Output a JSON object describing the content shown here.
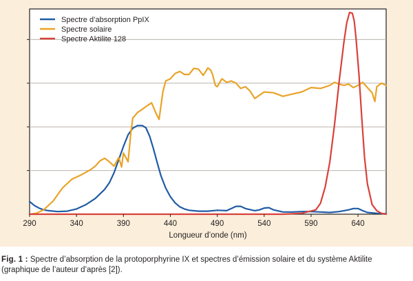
{
  "chart_data": {
    "type": "line",
    "xlabel": "Longueur d’onde (nm)",
    "ylabel": "",
    "xlim": [
      290,
      670
    ],
    "ylim": [
      0,
      4.7
    ],
    "x_ticks": [
      290,
      340,
      390,
      440,
      490,
      540,
      590,
      640
    ],
    "y_gridlines": [
      1,
      2,
      3,
      4
    ],
    "grid": true,
    "legend_position": "top-left",
    "colors": {
      "background": "#fbeedb",
      "grid": "#b9b3ad"
    },
    "series": [
      {
        "name": "Spectre d’absorption PpIX",
        "color": "#1f5ba3",
        "x": [
          290,
          295,
          300,
          305,
          310,
          320,
          330,
          340,
          350,
          360,
          370,
          375,
          380,
          385,
          390,
          395,
          400,
          405,
          410,
          414,
          418,
          422,
          426,
          430,
          435,
          440,
          445,
          450,
          455,
          460,
          470,
          480,
          490,
          500,
          505,
          510,
          515,
          520,
          530,
          535,
          540,
          545,
          550,
          560,
          570,
          580,
          590,
          600,
          610,
          620,
          630,
          635,
          640,
          645,
          650,
          660,
          670
        ],
        "values": [
          0.29,
          0.2,
          0.14,
          0.1,
          0.08,
          0.06,
          0.07,
          0.12,
          0.22,
          0.36,
          0.57,
          0.72,
          0.95,
          1.25,
          1.55,
          1.82,
          1.97,
          2.03,
          2.03,
          1.98,
          1.78,
          1.5,
          1.18,
          0.88,
          0.6,
          0.4,
          0.26,
          0.17,
          0.12,
          0.09,
          0.07,
          0.07,
          0.09,
          0.08,
          0.13,
          0.18,
          0.18,
          0.13,
          0.08,
          0.1,
          0.14,
          0.15,
          0.1,
          0.05,
          0.05,
          0.06,
          0.06,
          0.05,
          0.04,
          0.06,
          0.1,
          0.13,
          0.13,
          0.08,
          0.04,
          0.02,
          0.01
        ]
      },
      {
        "name": "Spectre solaire",
        "color": "#e8a327",
        "x": [
          290,
          297,
          305,
          315,
          325,
          335,
          345,
          355,
          360,
          365,
          370,
          375,
          380,
          382,
          385,
          388,
          390,
          395,
          398,
          400,
          405,
          410,
          415,
          420,
          425,
          428,
          432,
          435,
          440,
          445,
          450,
          455,
          460,
          465,
          470,
          475,
          478,
          480,
          483,
          485,
          488,
          490,
          495,
          500,
          505,
          510,
          515,
          520,
          525,
          530,
          540,
          550,
          560,
          570,
          580,
          590,
          600,
          610,
          615,
          620,
          625,
          630,
          635,
          640,
          645,
          650,
          655,
          658,
          660,
          665,
          670
        ],
        "values": [
          0,
          0.02,
          0.1,
          0.3,
          0.6,
          0.8,
          0.9,
          1.02,
          1.1,
          1.22,
          1.28,
          1.2,
          1.1,
          1.18,
          1.3,
          1.08,
          1.4,
          1.2,
          1.88,
          2.2,
          2.33,
          2.4,
          2.48,
          2.55,
          2.3,
          2.17,
          2.8,
          3.05,
          3.1,
          3.22,
          3.27,
          3.2,
          3.2,
          3.34,
          3.32,
          3.18,
          3.28,
          3.35,
          3.3,
          3.2,
          2.95,
          2.92,
          3.1,
          3.02,
          3.05,
          3.0,
          2.88,
          2.92,
          2.82,
          2.65,
          2.8,
          2.78,
          2.7,
          2.75,
          2.8,
          2.9,
          2.88,
          2.95,
          3.02,
          2.98,
          2.95,
          2.98,
          2.9,
          2.95,
          3.02,
          2.9,
          2.78,
          2.58,
          2.92,
          3.0,
          2.95
        ]
      },
      {
        "name": "Spectre Aktilite 128",
        "color": "#d9403a",
        "x": [
          290,
          560,
          580,
          595,
          600,
          605,
          610,
          615,
          620,
          625,
          628,
          631,
          634,
          636,
          638,
          641,
          644,
          647,
          650,
          655,
          660,
          665,
          670
        ],
        "values": [
          0,
          0,
          0.02,
          0.1,
          0.25,
          0.62,
          1.2,
          2.05,
          3.05,
          3.95,
          4.38,
          4.62,
          4.6,
          4.42,
          4.0,
          3.2,
          2.2,
          1.3,
          0.7,
          0.22,
          0.08,
          0.02,
          0
        ]
      }
    ]
  },
  "caption": {
    "lead": "Fig. 1 :",
    "text": " Spectre d’absorption de la protoporphyrine IX et spectres d’émission solaire et du système Aktilite (graphique de l’auteur d’après [2])."
  }
}
